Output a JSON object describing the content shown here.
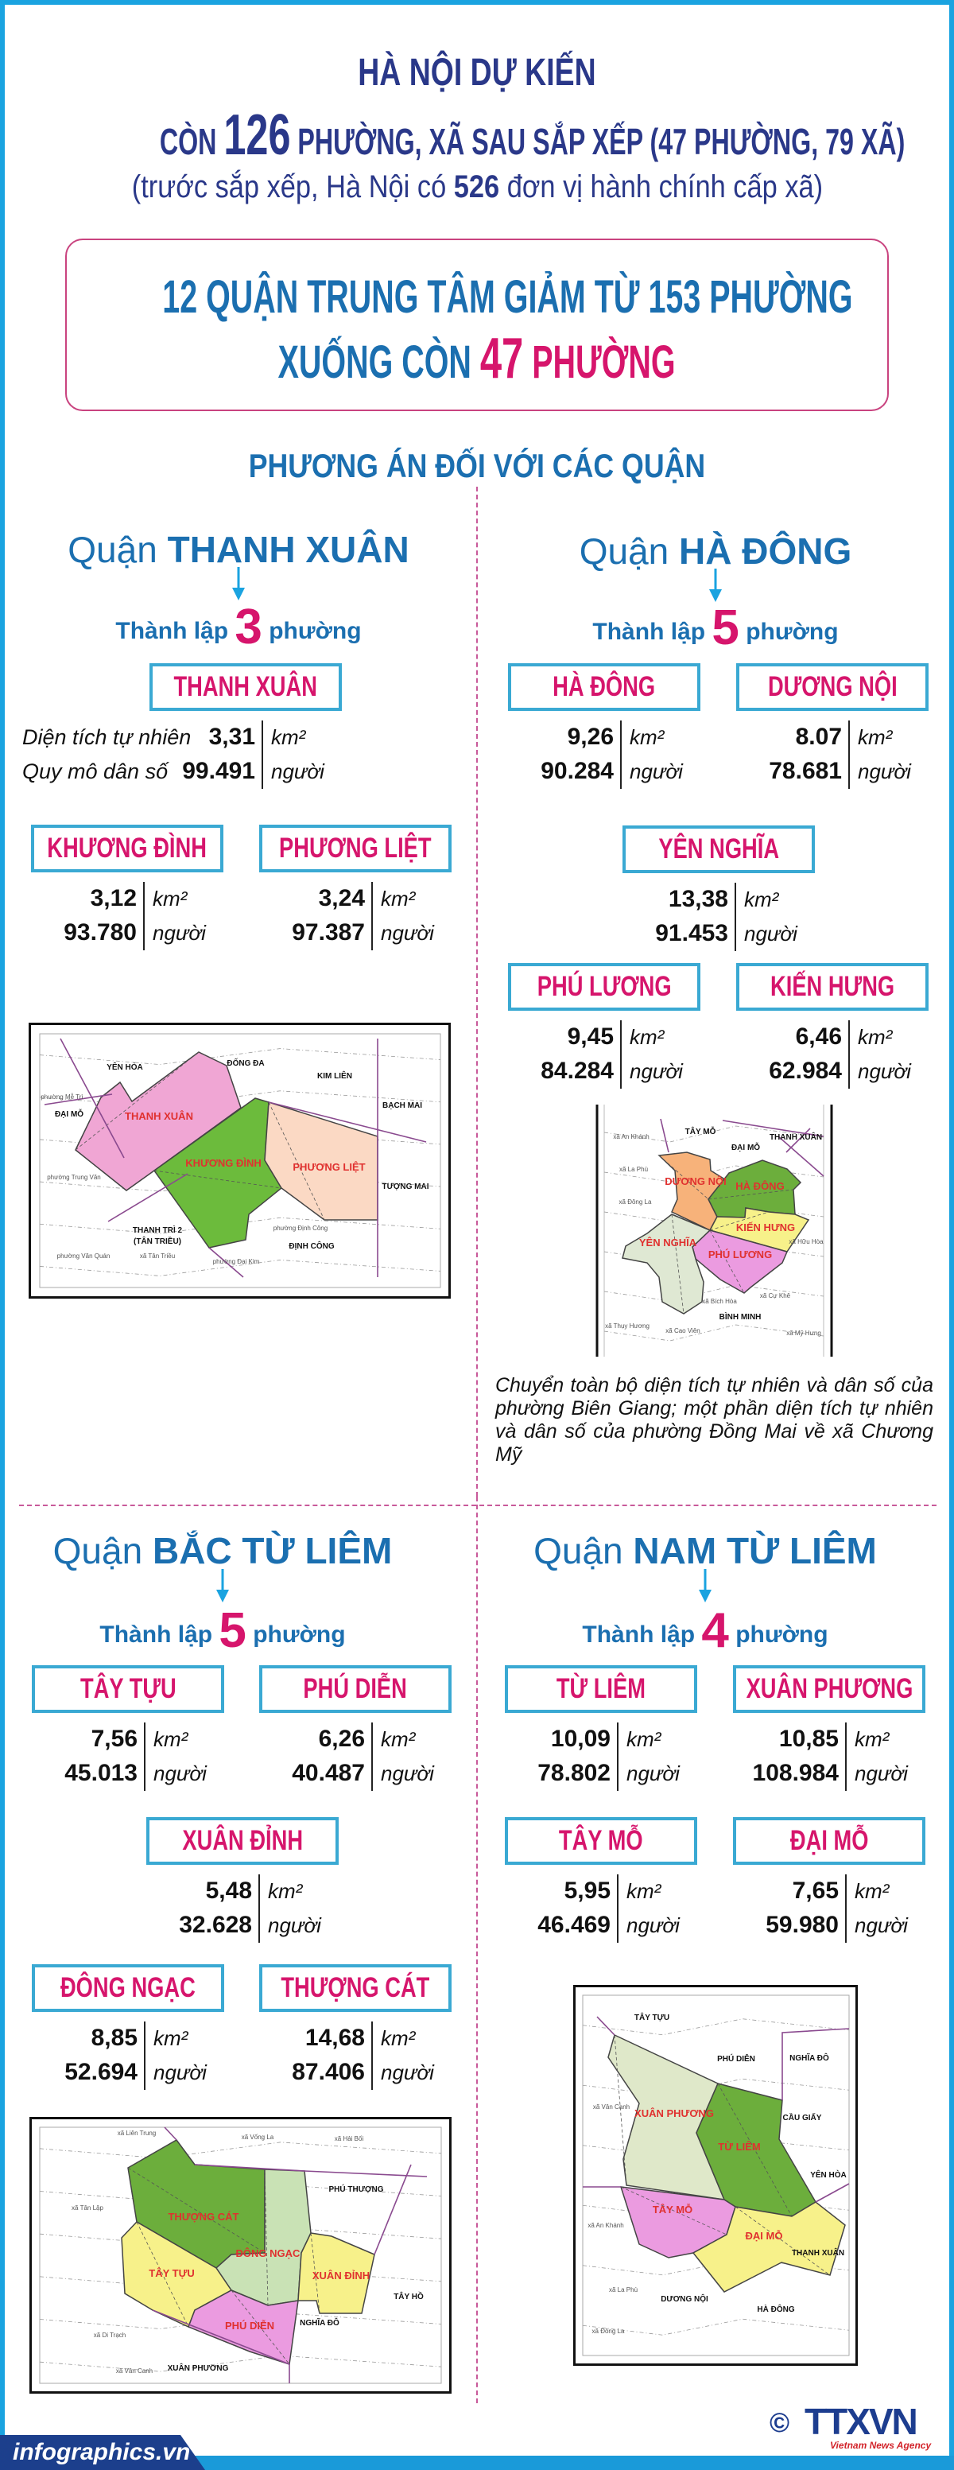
{
  "header": {
    "title": "HÀ NỘI DỰ KIẾN",
    "line2_pre": "CÒN ",
    "line2_num": "126",
    "line2_post": " PHƯỜNG, XÃ SAU SẮP XẾP (47 PHƯỜNG, 79 XÃ)",
    "line3_pre": "(trước sắp xếp, Hà Nội có ",
    "line3_num": "526",
    "line3_post": " đơn vị hành chính cấp xã)"
  },
  "highlight": {
    "line1": "12 QUẬN TRUNG TÂM GIẢM TỪ 153 PHƯỜNG",
    "line2_pre": "XUỐNG CÒN ",
    "line2_num": "47",
    "line2_post": " PHƯỜNG"
  },
  "section_title": "PHƯƠNG ÁN ĐỐI VỚI CÁC QUẬN",
  "labels": {
    "area": "Diện tích tự nhiên",
    "population": "Quy mô dân số",
    "area_unit": "km²",
    "pop_unit": "người",
    "district_prefix": "Quận ",
    "est_pre": "Thành lập ",
    "est_post": " phường"
  },
  "districts": [
    {
      "name": "THANH XUÂN",
      "count": "3",
      "wards": [
        {
          "name": "THANH XUÂN",
          "area": "3,31",
          "population": "99.491"
        },
        {
          "name": "KHƯƠNG ĐÌNH",
          "area": "3,12",
          "population": "93.780"
        },
        {
          "name": "PHƯƠNG LIỆT",
          "area": "3,24",
          "population": "97.387"
        }
      ],
      "map_labels": [
        "THANH XUÂN",
        "KHƯƠNG ĐÌNH",
        "PHƯƠNG LIỆT",
        "YÊN HÒA",
        "ĐỐNG ĐA",
        "KIM LIÊN",
        "BẠCH MAI",
        "ĐẠI MỖ",
        "TƯỢNG MAI",
        "THANH TRÌ 2",
        "(TÂN TRIỀU)",
        "ĐỊNH CÔNG",
        "phường Mễ Trì",
        "phường Trung Văn",
        "phường Văn Quán",
        "xã Tân Triều",
        "phường Đại Kim",
        "phường Định Công"
      ]
    },
    {
      "name": "HÀ ĐÔNG",
      "count": "5",
      "wards": [
        {
          "name": "HÀ ĐÔNG",
          "area": "9,26",
          "population": "90.284"
        },
        {
          "name": "DƯƠNG NỘI",
          "area": "8.07",
          "population": "78.681"
        },
        {
          "name": "YÊN NGHĨA",
          "area": "13,38",
          "population": "91.453"
        },
        {
          "name": "PHÚ LƯƠNG",
          "area": "9,45",
          "population": "84.284"
        },
        {
          "name": "KIẾN HƯNG",
          "area": "6,46",
          "population": "62.984"
        }
      ],
      "map_labels": [
        "DƯƠNG NỘI",
        "HÀ ĐÔNG",
        "KIẾN HƯNG",
        "YÊN NGHĨA",
        "PHÚ LƯƠNG",
        "BÌNH MINH",
        "TÂY MỖ",
        "ĐẠI MỖ",
        "THANH XUÂN",
        "xã An Khánh",
        "xã La Phù",
        "xã Đông La",
        "xã Cự Khê",
        "xã Bích Hòa",
        "xã Cao Viên",
        "xã Thụy Hương",
        "xã Mỹ Hưng",
        "xã Hữu Hòa"
      ],
      "note": "Chuyển  toàn bộ diện tích tự nhiên và dân số của phường Biên Giang; một phần diện tích tự nhiên và dân số của phường Đồng Mai về xã Chương Mỹ"
    },
    {
      "name": "BẮC TỪ LIÊM",
      "count": "5",
      "wards": [
        {
          "name": "TÂY TỰU",
          "area": "7,56",
          "population": "45.013"
        },
        {
          "name": "PHÚ DIỄN",
          "area": "6,26",
          "population": "40.487"
        },
        {
          "name": "XUÂN ĐỈNH",
          "area": "5,48",
          "population": "32.628"
        },
        {
          "name": "ĐÔNG NGẠC",
          "area": "8,85",
          "population": "52.694"
        },
        {
          "name": "THƯỢNG CÁT",
          "area": "14,68",
          "population": "87.406"
        }
      ],
      "map_labels": [
        "THƯỢNG CÁT",
        "ĐÔNG NGẠC",
        "XUÂN ĐỈNH",
        "TÂY TỰU",
        "PHÚ DIỄN",
        "PHÚ THƯỢNG",
        "TÂY HỒ",
        "NGHĨA ĐÔ",
        "XUÂN PHƯƠNG",
        "xã Liên Trung",
        "xã Vống La",
        "xã Hải Bối",
        "xã Tân Lập",
        "xã Di Trạch",
        "xã Vân Canh"
      ]
    },
    {
      "name": "NAM TỪ LIÊM",
      "count": "4",
      "wards": [
        {
          "name": "TỪ LIÊM",
          "area": "10,09",
          "population": "78.802"
        },
        {
          "name": "XUÂN PHƯƠNG",
          "area": "10,85",
          "population": "108.984"
        },
        {
          "name": "TÂY MỖ",
          "area": "5,95",
          "population": "46.469"
        },
        {
          "name": "ĐẠI MỖ",
          "area": "7,65",
          "population": "59.980"
        }
      ],
      "map_labels": [
        "XUÂN PHƯƠNG",
        "TỪ LIÊM",
        "TÂY MỖ",
        "ĐẠI MỖ",
        "TÂY TỰU",
        "PHÚ DIỄN",
        "NGHĨA ĐÔ",
        "CẦU GIẤY",
        "YÊN HÒA",
        "THANH XUÂN",
        "DƯƠNG NỘI",
        "HÀ ĐÔNG",
        "xã Vân Canh",
        "xã An Khánh",
        "xã La Phù",
        "xã Đông La"
      ]
    }
  ],
  "footer": {
    "site": "infographics.vn",
    "copyright": "©",
    "agency_logo": "TTXVN",
    "agency_name": "Vietnam News Agency"
  },
  "colors": {
    "navy": "#2a3889",
    "blue": "#1b6fb0",
    "pink": "#d6156c",
    "frame_cyan": "#1aa3e0",
    "box_border": "#3aa9d3"
  }
}
